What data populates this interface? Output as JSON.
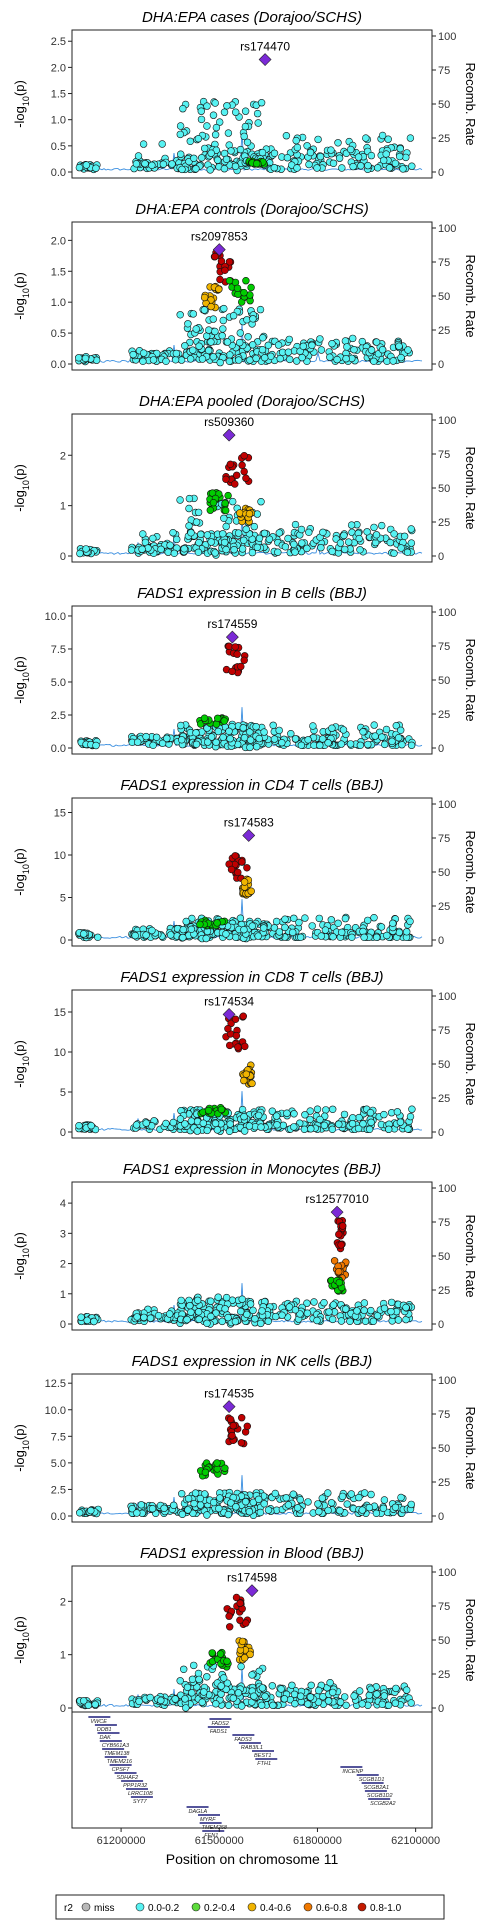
{
  "chart_data": [
    {
      "type": "scatter",
      "title": "DHA:EPA cases (Dorajoo/SCHS)",
      "ylabel": "-log10(p)",
      "y2label": "Recomb. Rate",
      "ylim": [
        0,
        2.6
      ],
      "yticks": [
        "0.0",
        "0.5",
        "1.0",
        "1.5",
        "2.0",
        "2.5"
      ],
      "y2ticks": [
        "0",
        "25",
        "50",
        "75",
        "100"
      ],
      "lead_snp": "rs174470",
      "lead_pos": 61640000,
      "lead_y": 2.15,
      "lead_r2": "lead",
      "profile": {
        "peak": 1.55,
        "spread": 0.55,
        "sub": 1.0,
        "bands": [
          [
            61590000,
            61640000,
            0.2,
            "#00cc00"
          ]
        ]
      }
    },
    {
      "type": "scatter",
      "title": "DHA:EPA controls (Dorajoo/SCHS)",
      "ylabel": "-log10(p)",
      "y2label": "Recomb. Rate",
      "ylim": [
        0,
        2.2
      ],
      "yticks": [
        "0.0",
        "0.5",
        "1.0",
        "1.5",
        "2.0"
      ],
      "y2ticks": [
        "0",
        "25",
        "50",
        "75",
        "100"
      ],
      "lead_snp": "rs2097853",
      "lead_pos": 61500000,
      "lead_y": 1.85,
      "lead_r2": "lead",
      "profile": {
        "peak": 1.0,
        "spread": 0.4,
        "sub": 0.6,
        "bands": [
          [
            61480000,
            61540000,
            1.75,
            "#c00000"
          ],
          [
            61450000,
            61500000,
            1.2,
            "#f0b400"
          ],
          [
            61530000,
            61600000,
            1.3,
            "#00cc00"
          ]
        ]
      }
    },
    {
      "type": "scatter",
      "title": "DHA:EPA pooled (Dorajoo/SCHS)",
      "ylabel": "-log10(p)",
      "y2label": "Recomb. Rate",
      "ylim": [
        0,
        2.7
      ],
      "yticks": [
        "0",
        "1",
        "2"
      ],
      "y2ticks": [
        "0",
        "25",
        "50",
        "75",
        "100"
      ],
      "lead_snp": "rs509360",
      "lead_pos": 61530000,
      "lead_y": 2.4,
      "lead_r2": "lead",
      "profile": {
        "peak": 1.3,
        "spread": 0.55,
        "sub": 0.9,
        "bands": [
          [
            61520000,
            61590000,
            1.9,
            "#c00000"
          ],
          [
            61470000,
            61530000,
            1.2,
            "#00cc00"
          ],
          [
            61560000,
            61600000,
            0.9,
            "#f0b400"
          ]
        ]
      }
    },
    {
      "type": "scatter",
      "title": "FADS1 expression in B cells (BBJ)",
      "ylabel": "-log10(p)",
      "y2label": "Recomb. Rate",
      "ylim": [
        0,
        10.3
      ],
      "yticks": [
        "0.0",
        "2.5",
        "5.0",
        "7.5",
        "10.0"
      ],
      "y2ticks": [
        "0",
        "25",
        "50",
        "75",
        "100"
      ],
      "lead_snp": "rs174559",
      "lead_pos": 61540000,
      "lead_y": 8.4,
      "lead_r2": "lead",
      "profile": {
        "peak": 2.0,
        "spread": 0.55,
        "sub": 1.2,
        "bands": [
          [
            61520000,
            61580000,
            7.5,
            "#c00000"
          ],
          [
            61440000,
            61520000,
            2.2,
            "#00cc00"
          ]
        ]
      }
    },
    {
      "type": "scatter",
      "title": "FADS1 expression in CD4 T cells (BBJ)",
      "ylabel": "-log10(p)",
      "y2label": "Recomb. Rate",
      "ylim": [
        0,
        16
      ],
      "yticks": [
        "0",
        "5",
        "10",
        "15"
      ],
      "y2ticks": [
        "0",
        "25",
        "50",
        "75",
        "100"
      ],
      "lead_snp": "rs174583",
      "lead_pos": 61590000,
      "lead_y": 12.3,
      "lead_r2": "lead",
      "profile": {
        "peak": 2.5,
        "spread": 0.55,
        "sub": 1.5,
        "bands": [
          [
            61530000,
            61590000,
            9.6,
            "#c00000"
          ],
          [
            61570000,
            61600000,
            7.0,
            "#f0b400"
          ],
          [
            61440000,
            61520000,
            2.2,
            "#00cc00"
          ]
        ]
      }
    },
    {
      "type": "scatter",
      "title": "FADS1 expression in CD8 T cells (BBJ)",
      "ylabel": "-log10(p)",
      "y2label": "Recomb. Rate",
      "ylim": [
        0,
        17
      ],
      "yticks": [
        "0",
        "5",
        "10",
        "15"
      ],
      "y2ticks": [
        "0",
        "25",
        "50",
        "75",
        "100"
      ],
      "lead_snp": "rs174534",
      "lead_pos": 61530000,
      "lead_y": 14.7,
      "lead_r2": "lead",
      "profile": {
        "peak": 3.0,
        "spread": 0.6,
        "sub": 1.7,
        "bands": [
          [
            61520000,
            61580000,
            13.8,
            "#c00000"
          ],
          [
            61570000,
            61600000,
            8.0,
            "#f0b400"
          ],
          [
            61440000,
            61520000,
            3.0,
            "#00cc00"
          ]
        ]
      }
    },
    {
      "type": "scatter",
      "title": "FADS1 expression in Monocytes (BBJ)",
      "ylabel": "-log10(p)",
      "y2label": "Recomb. Rate",
      "ylim": [
        0,
        4.5
      ],
      "yticks": [
        "0",
        "1",
        "2",
        "3",
        "4"
      ],
      "y2ticks": [
        "0",
        "25",
        "50",
        "75",
        "100"
      ],
      "lead_snp": "rs12577010",
      "lead_pos": 61860000,
      "lead_y": 3.7,
      "lead_r2": "lead",
      "profile": {
        "peak": 1.0,
        "spread": 0.5,
        "sub": 1.0,
        "bands": [
          [
            61860000,
            61880000,
            3.3,
            "#c00000"
          ],
          [
            61850000,
            61890000,
            2.0,
            "#f07800"
          ],
          [
            61840000,
            61880000,
            1.4,
            "#00cc00"
          ]
        ]
      }
    },
    {
      "type": "scatter",
      "title": "FADS1 expression in NK cells (BBJ)",
      "ylabel": "-log10(p)",
      "y2label": "Recomb. Rate",
      "ylim": [
        0,
        12.8
      ],
      "yticks": [
        "0.0",
        "2.5",
        "5.0",
        "7.5",
        "10.0",
        "12.5"
      ],
      "y2ticks": [
        "0",
        "25",
        "50",
        "75",
        "100"
      ],
      "lead_snp": "rs174535",
      "lead_pos": 61530000,
      "lead_y": 10.3,
      "lead_r2": "lead",
      "profile": {
        "peak": 2.5,
        "spread": 0.55,
        "sub": 1.5,
        "bands": [
          [
            61520000,
            61590000,
            9.0,
            "#c00000"
          ],
          [
            61440000,
            61520000,
            5.0,
            "#00cc00"
          ]
        ]
      }
    },
    {
      "type": "scatter",
      "title": "FADS1 expression in Blood (BBJ)",
      "ylabel": "-log10(p)",
      "y2label": "Recomb. Rate",
      "ylim": [
        0,
        2.55
      ],
      "yticks": [
        "0",
        "1",
        "2"
      ],
      "y2ticks": [
        "0",
        "25",
        "50",
        "75",
        "100"
      ],
      "lead_snp": "rs174598",
      "lead_pos": 61600000,
      "lead_y": 2.2,
      "lead_r2": "lead",
      "profile": {
        "peak": 0.9,
        "spread": 0.5,
        "sub": 0.7,
        "bands": [
          [
            61520000,
            61590000,
            2.0,
            "#c00000"
          ],
          [
            61560000,
            61600000,
            1.2,
            "#f0b400"
          ],
          [
            61460000,
            61530000,
            1.0,
            "#00cc00"
          ]
        ]
      }
    }
  ],
  "genes": [
    "VWCE",
    "DDB1",
    "DAK",
    "CYB561A3",
    "TMEM138",
    "TMEM216",
    "CPSF7",
    "SDHAF2",
    "PPP1R32",
    "LRRC10B",
    "SYT7",
    "DAGLA",
    "MYRF",
    "TMEM258",
    "FEN1",
    "FADS2",
    "FADS1",
    "FADS3",
    "RAB3IL1",
    "BEST1",
    "FTH1",
    "INCENP",
    "SCGB1D1",
    "SCGB2A1",
    "SCGB1D2",
    "SCGB2A2"
  ],
  "xaxis": {
    "label": "Position on chromosome 11",
    "ticks": [
      "61200000",
      "61500000",
      "61800000",
      "62100000"
    ],
    "range": [
      61050000,
      62150000
    ]
  },
  "legend": {
    "title": "r2",
    "items": [
      {
        "label": "miss",
        "color": "#b8b8b8"
      },
      {
        "label": "0.0-0.2",
        "color": "#57f2f2"
      },
      {
        "label": "0.2-0.4",
        "color": "#5ddb3c"
      },
      {
        "label": "0.4-0.6",
        "color": "#f0b400"
      },
      {
        "label": "0.6-0.8",
        "color": "#f07800"
      },
      {
        "label": "0.8-1.0",
        "color": "#c41a00"
      }
    ]
  },
  "lead_color": "#7b2ad6"
}
